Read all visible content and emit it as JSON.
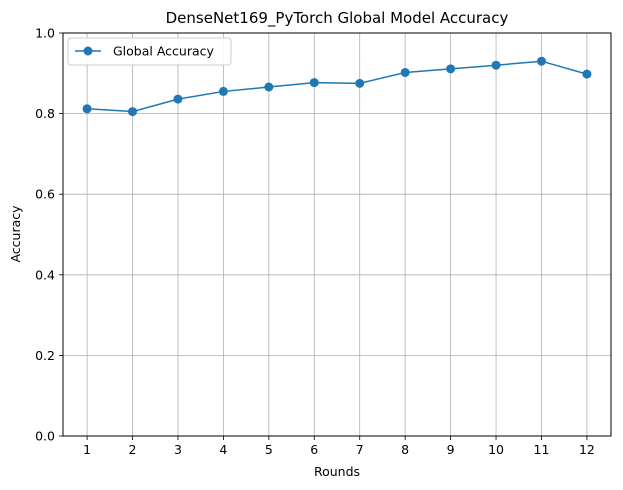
{
  "chart_data": {
    "type": "line",
    "title": "DenseNet169_PyTorch Global Model Accuracy",
    "xlabel": "Rounds",
    "ylabel": "Accuracy",
    "x": [
      1,
      2,
      3,
      4,
      5,
      6,
      7,
      8,
      9,
      10,
      11,
      12
    ],
    "x_ticks": [
      "1",
      "2",
      "3",
      "4",
      "5",
      "6",
      "7",
      "8",
      "9",
      "10",
      "11",
      "12"
    ],
    "ylim": [
      0,
      1
    ],
    "y_ticks": [
      "0.0",
      "0.2",
      "0.4",
      "0.6",
      "0.8",
      "1.0"
    ],
    "grid": true,
    "legend_position": "top-left",
    "series": [
      {
        "name": "Global Accuracy",
        "color": "#1f77b4",
        "marker": "circle",
        "values": [
          0.812,
          0.805,
          0.836,
          0.855,
          0.866,
          0.877,
          0.875,
          0.902,
          0.911,
          0.92,
          0.93,
          0.898
        ]
      }
    ]
  }
}
